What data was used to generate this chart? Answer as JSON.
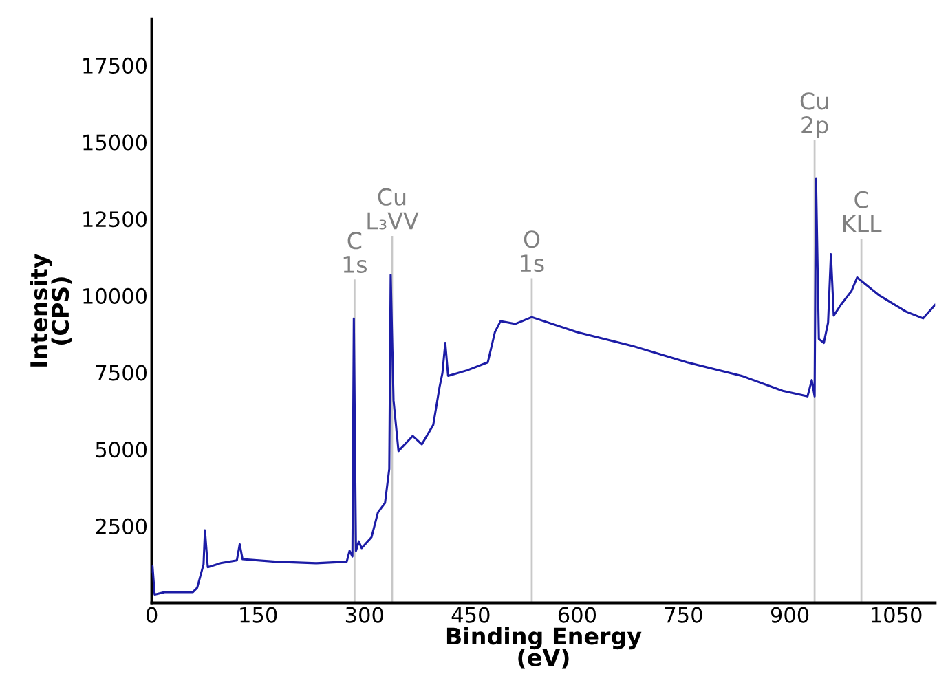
{
  "chart_data": {
    "type": "line",
    "xlabel": "Binding Energy\n(eV)",
    "ylabel": "Intensity\n(CPS)",
    "xlim": [
      0,
      1105
    ],
    "ylim": [
      0,
      19000
    ],
    "xticks": [
      0,
      150,
      300,
      450,
      600,
      750,
      900,
      1050
    ],
    "yticks": [
      2500,
      5000,
      7500,
      10000,
      12500,
      15000,
      17500
    ],
    "grid": false,
    "legend": false,
    "marker": "none",
    "line_style": "solid",
    "series": [
      {
        "color": "#1c1ca6",
        "x": [
          0,
          1,
          4,
          19,
          58,
          64,
          73,
          75,
          79,
          97,
          120,
          124,
          128,
          174,
          232,
          275,
          279,
          283,
          285,
          288,
          292,
          296,
          310,
          319,
          329,
          335,
          337,
          341,
          348,
          368,
          381,
          397,
          406,
          410,
          414,
          418,
          445,
          474,
          484,
          492,
          513,
          536,
          600,
          677,
          755,
          832,
          890,
          925,
          931,
          935,
          937,
          941,
          948,
          954,
          958,
          962,
          972,
          987,
          995,
          1026,
          1064,
          1088,
          1105
        ],
        "values": [
          1000,
          1200,
          270,
          350,
          350,
          490,
          1250,
          2360,
          1160,
          1290,
          1380,
          1910,
          1420,
          1340,
          1290,
          1340,
          1690,
          1510,
          9260,
          1690,
          2000,
          1780,
          2140,
          2940,
          3250,
          4360,
          10680,
          6590,
          4940,
          5430,
          5160,
          5790,
          7030,
          7480,
          8460,
          7390,
          7570,
          7830,
          8810,
          9170,
          9080,
          9300,
          8810,
          8370,
          7830,
          7390,
          6900,
          6720,
          7250,
          6720,
          13800,
          8590,
          8460,
          9120,
          11350,
          9350,
          9700,
          10150,
          10590,
          10010,
          9480,
          9260,
          9700
        ]
      }
    ],
    "ref_lines": [
      {
        "axis": "x",
        "value": 286,
        "label": "C\n1s",
        "color": "#c8c8c8"
      },
      {
        "axis": "x",
        "value": 339,
        "label": "Cu\nL₃VV",
        "color": "#c8c8c8"
      },
      {
        "axis": "x",
        "value": 536,
        "label": "O\n1s",
        "color": "#c8c8c8"
      },
      {
        "axis": "x",
        "value": 935,
        "label": "Cu\n2p",
        "color": "#c8c8c8"
      },
      {
        "axis": "x",
        "value": 1001,
        "label": "C\nKLL",
        "color": "#c8c8c8"
      }
    ]
  }
}
